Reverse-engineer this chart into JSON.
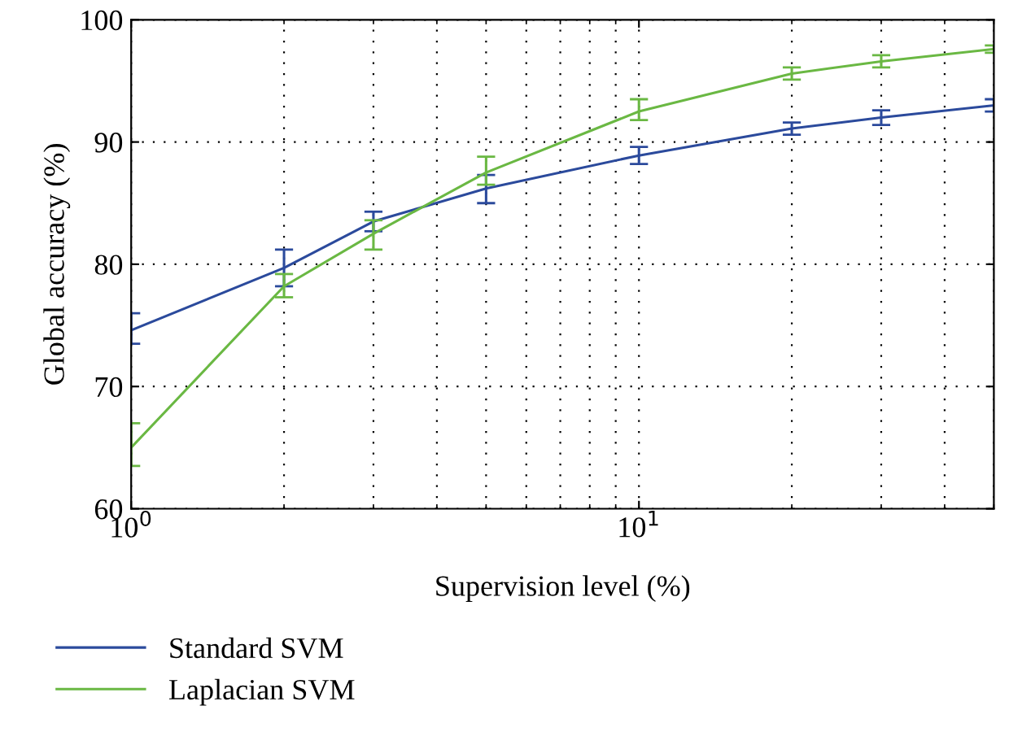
{
  "chart_data": {
    "type": "line",
    "xlabel": "Supervision level (%)",
    "ylabel": "Global accuracy (%)",
    "x": [
      1,
      2,
      3,
      5,
      10,
      20,
      30,
      50
    ],
    "series": [
      {
        "name": "Standard SVM",
        "color": "#2b4a9c",
        "values": [
          74.6,
          79.7,
          83.5,
          86.2,
          88.9,
          91.1,
          92.0,
          93.0
        ],
        "errors": [
          [
            73.5,
            76.0
          ],
          [
            78.2,
            81.2
          ],
          [
            82.7,
            84.3
          ],
          [
            85.0,
            87.3
          ],
          [
            88.2,
            89.6
          ],
          [
            90.6,
            91.6
          ],
          [
            91.4,
            92.6
          ],
          [
            92.5,
            93.5
          ]
        ]
      },
      {
        "name": "Laplacian SVM",
        "color": "#6ab843",
        "values": [
          65.0,
          78.2,
          82.5,
          87.5,
          92.5,
          95.6,
          96.6,
          97.6
        ],
        "errors": [
          [
            63.5,
            67.0
          ],
          [
            77.3,
            79.2
          ],
          [
            81.2,
            83.6
          ],
          [
            86.5,
            88.8
          ],
          [
            91.8,
            93.5
          ],
          [
            95.1,
            96.1
          ],
          [
            96.1,
            97.1
          ],
          [
            97.3,
            97.9
          ]
        ]
      }
    ],
    "log": "x",
    "xlim": [
      1,
      50
    ],
    "xticks": [
      {
        "value": 1,
        "label": "10$^{0}$"
      },
      {
        "value": 10,
        "label": "10$^{1}$"
      }
    ],
    "ylim": [
      60,
      100
    ],
    "yticks": [
      60,
      70,
      80,
      90,
      100
    ],
    "grid": true,
    "legend": "bottom",
    "line_style": "solid",
    "marker": "none"
  }
}
